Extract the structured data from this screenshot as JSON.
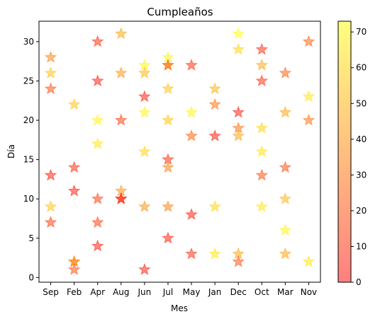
{
  "chart_data": {
    "type": "scatter",
    "title": "Cumpleaños",
    "xlabel": "Mes",
    "ylabel": "Día",
    "categories": [
      "Sep",
      "Feb",
      "Apr",
      "Aug",
      "Jun",
      "Jul",
      "May",
      "Jan",
      "Dec",
      "Oct",
      "Mar",
      "Nov"
    ],
    "ylim": [
      -0.6,
      32.6
    ],
    "yticks": [
      0,
      5,
      10,
      15,
      20,
      25,
      30
    ],
    "grid": false,
    "marker": "star",
    "colormap": "autumn",
    "alpha": 0.5,
    "colorbar": {
      "range": [
        0,
        73
      ],
      "ticks": [
        0,
        10,
        20,
        30,
        40,
        50,
        60,
        70
      ]
    },
    "points": [
      {
        "x": "Sep",
        "y": 28,
        "c": 35
      },
      {
        "x": "Sep",
        "y": 26,
        "c": 55
      },
      {
        "x": "Sep",
        "y": 24,
        "c": 20
      },
      {
        "x": "Sep",
        "y": 13,
        "c": 5
      },
      {
        "x": "Sep",
        "y": 9,
        "c": 55
      },
      {
        "x": "Sep",
        "y": 7,
        "c": 15
      },
      {
        "x": "Feb",
        "y": 22,
        "c": 55
      },
      {
        "x": "Feb",
        "y": 14,
        "c": 10
      },
      {
        "x": "Feb",
        "y": 11,
        "c": 5
      },
      {
        "x": "Feb",
        "y": 2,
        "c": 50
      },
      {
        "x": "Feb",
        "y": 2,
        "c": 30
      },
      {
        "x": "Feb",
        "y": 1,
        "c": 20
      },
      {
        "x": "Apr",
        "y": 30,
        "c": 10
      },
      {
        "x": "Apr",
        "y": 25,
        "c": 5
      },
      {
        "x": "Apr",
        "y": 20,
        "c": 70
      },
      {
        "x": "Apr",
        "y": 17,
        "c": 65
      },
      {
        "x": "Apr",
        "y": 10,
        "c": 15
      },
      {
        "x": "Apr",
        "y": 7,
        "c": 15
      },
      {
        "x": "Apr",
        "y": 4,
        "c": 5
      },
      {
        "x": "Aug",
        "y": 31,
        "c": 45
      },
      {
        "x": "Aug",
        "y": 26,
        "c": 40
      },
      {
        "x": "Aug",
        "y": 20,
        "c": 15
      },
      {
        "x": "Aug",
        "y": 11,
        "c": 40
      },
      {
        "x": "Aug",
        "y": 10,
        "c": 5
      },
      {
        "x": "Aug",
        "y": 10,
        "c": 10
      },
      {
        "x": "Jun",
        "y": 27,
        "c": 70
      },
      {
        "x": "Jun",
        "y": 26,
        "c": 50
      },
      {
        "x": "Jun",
        "y": 23,
        "c": 5
      },
      {
        "x": "Jun",
        "y": 21,
        "c": 70
      },
      {
        "x": "Jun",
        "y": 16,
        "c": 60
      },
      {
        "x": "Jun",
        "y": 9,
        "c": 40
      },
      {
        "x": "Jun",
        "y": 1,
        "c": 5
      },
      {
        "x": "Jul",
        "y": 28,
        "c": 70
      },
      {
        "x": "Jul",
        "y": 27,
        "c": 45
      },
      {
        "x": "Jul",
        "y": 27,
        "c": 25
      },
      {
        "x": "Jul",
        "y": 24,
        "c": 55
      },
      {
        "x": "Jul",
        "y": 20,
        "c": 55
      },
      {
        "x": "Jul",
        "y": 15,
        "c": 10
      },
      {
        "x": "Jul",
        "y": 14,
        "c": 35
      },
      {
        "x": "Jul",
        "y": 9,
        "c": 35
      },
      {
        "x": "Jul",
        "y": 5,
        "c": 5
      },
      {
        "x": "May",
        "y": 27,
        "c": 10
      },
      {
        "x": "May",
        "y": 21,
        "c": 70
      },
      {
        "x": "May",
        "y": 18,
        "c": 25
      },
      {
        "x": "May",
        "y": 8,
        "c": 5
      },
      {
        "x": "May",
        "y": 3,
        "c": 10
      },
      {
        "x": "Jan",
        "y": 24,
        "c": 50
      },
      {
        "x": "Jan",
        "y": 22,
        "c": 30
      },
      {
        "x": "Jan",
        "y": 18,
        "c": 5
      },
      {
        "x": "Jan",
        "y": 9,
        "c": 60
      },
      {
        "x": "Jan",
        "y": 3,
        "c": 65
      },
      {
        "x": "Dec",
        "y": 31,
        "c": 73
      },
      {
        "x": "Dec",
        "y": 29,
        "c": 60
      },
      {
        "x": "Dec",
        "y": 21,
        "c": 5
      },
      {
        "x": "Dec",
        "y": 19,
        "c": 30
      },
      {
        "x": "Dec",
        "y": 18,
        "c": 45
      },
      {
        "x": "Dec",
        "y": 3,
        "c": 45
      },
      {
        "x": "Dec",
        "y": 2,
        "c": 20
      },
      {
        "x": "Oct",
        "y": 29,
        "c": 10
      },
      {
        "x": "Oct",
        "y": 27,
        "c": 45
      },
      {
        "x": "Oct",
        "y": 25,
        "c": 10
      },
      {
        "x": "Oct",
        "y": 19,
        "c": 60
      },
      {
        "x": "Oct",
        "y": 16,
        "c": 65
      },
      {
        "x": "Oct",
        "y": 13,
        "c": 20
      },
      {
        "x": "Oct",
        "y": 9,
        "c": 65
      },
      {
        "x": "Mar",
        "y": 26,
        "c": 25
      },
      {
        "x": "Mar",
        "y": 21,
        "c": 45
      },
      {
        "x": "Mar",
        "y": 14,
        "c": 20
      },
      {
        "x": "Mar",
        "y": 10,
        "c": 50
      },
      {
        "x": "Mar",
        "y": 6,
        "c": 70
      },
      {
        "x": "Mar",
        "y": 3,
        "c": 45
      },
      {
        "x": "Nov",
        "y": 30,
        "c": 25
      },
      {
        "x": "Nov",
        "y": 23,
        "c": 65
      },
      {
        "x": "Nov",
        "y": 20,
        "c": 30
      },
      {
        "x": "Nov",
        "y": 2,
        "c": 65
      }
    ]
  }
}
